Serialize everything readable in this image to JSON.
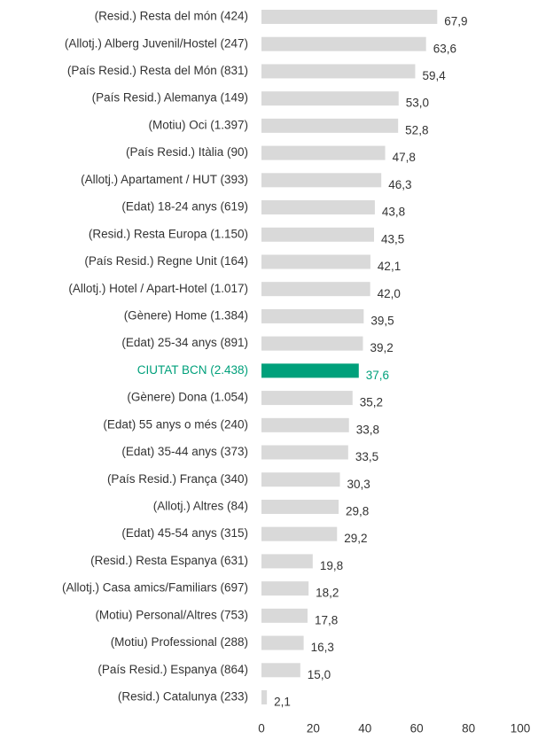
{
  "chart_data": {
    "type": "hbar",
    "categories": [
      "(Resid.) Resta del món (424)",
      "(Allotj.) Alberg Juvenil/Hostel (247)",
      "(País Resid.) Resta del Món (831)",
      "(País Resid.) Alemanya (149)",
      "(Motiu) Oci (1.397)",
      "(País Resid.) Itàlia (90)",
      "(Allotj.) Apartament / HUT (393)",
      "(Edat) 18-24 anys (619)",
      "(Resid.) Resta Europa (1.150)",
      "(País Resid.) Regne Unit (164)",
      "(Allotj.) Hotel / Apart-Hotel (1.017)",
      "(Gènere) Home (1.384)",
      "(Edat) 25-34 anys (891)",
      "CIUTAT BCN (2.438)",
      "(Gènere) Dona (1.054)",
      "(Edat) 55 anys o més (240)",
      "(Edat) 35-44 anys (373)",
      "(País Resid.) França (340)",
      "(Allotj.) Altres (84)",
      "(Edat) 45-54 anys (315)",
      "(Resid.) Resta Espanya (631)",
      "(Allotj.) Casa amics/Familiars (697)",
      "(Motiu) Personal/Altres (753)",
      "(Motiu) Professional (288)",
      "(País Resid.) Espanya (864)",
      "(Resid.) Catalunya (233)"
    ],
    "values": [
      67.9,
      63.6,
      59.4,
      53.0,
      52.8,
      47.8,
      46.3,
      43.8,
      43.5,
      42.1,
      42.0,
      39.5,
      39.2,
      37.6,
      35.2,
      33.8,
      33.5,
      30.3,
      29.8,
      29.2,
      19.8,
      18.2,
      17.8,
      16.3,
      15.0,
      2.1
    ],
    "value_labels": [
      "67,9",
      "63,6",
      "59,4",
      "53,0",
      "52,8",
      "47,8",
      "46,3",
      "43,8",
      "43,5",
      "42,1",
      "42,0",
      "39,5",
      "39,2",
      "37,6",
      "35,2",
      "33,8",
      "33,5",
      "30,3",
      "29,8",
      "29,2",
      "19,8",
      "18,2",
      "17,8",
      "16,3",
      "15,0",
      "2,1"
    ],
    "colors": [
      "#d9d9d9",
      "#d9d9d9",
      "#d9d9d9",
      "#d9d9d9",
      "#d9d9d9",
      "#d9d9d9",
      "#d9d9d9",
      "#d9d9d9",
      "#d9d9d9",
      "#d9d9d9",
      "#d9d9d9",
      "#d9d9d9",
      "#d9d9d9",
      "#00a07b",
      "#d9d9d9",
      "#d9d9d9",
      "#d9d9d9",
      "#d9d9d9",
      "#d9d9d9",
      "#d9d9d9",
      "#d9d9d9",
      "#d9d9d9",
      "#d9d9d9",
      "#d9d9d9",
      "#d9d9d9",
      "#d9d9d9"
    ],
    "xlim": [
      0,
      100
    ],
    "xticks": [
      0,
      20,
      40,
      60,
      80,
      100
    ]
  }
}
